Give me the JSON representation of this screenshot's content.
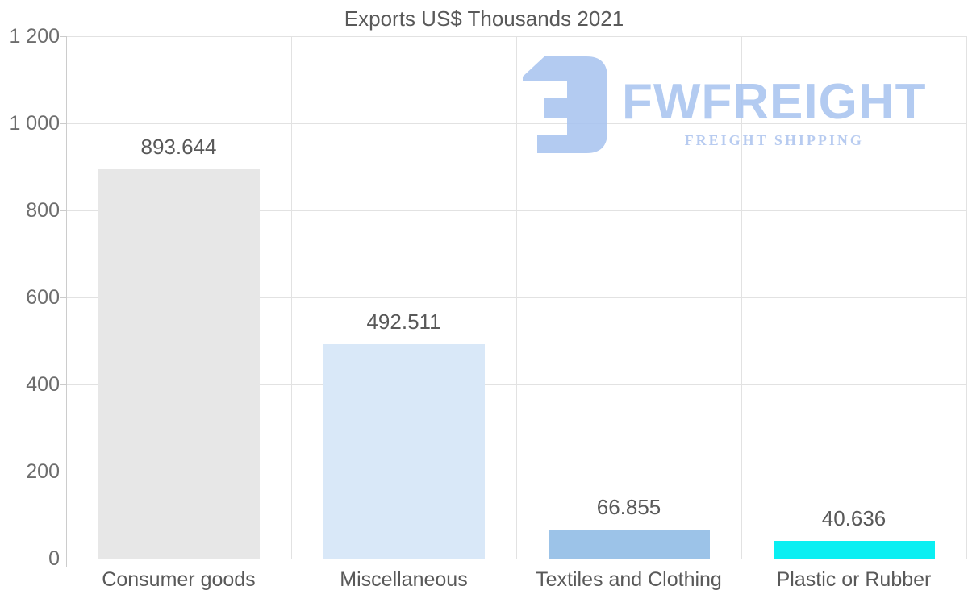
{
  "watermark": {
    "brand": "FWFREIGHT",
    "tagline": "FREIGHT SHIPPING",
    "brand_color": "#a9c4f0",
    "tagline_color": "#aec4ee",
    "icon": "fwfreight-logo-icon"
  },
  "chart_data": {
    "type": "bar",
    "title": "Exports US$ Thousands 2021",
    "categories": [
      "Consumer goods",
      "Miscellaneous",
      "Textiles and Clothing",
      "Plastic or Rubber"
    ],
    "values": [
      893.644,
      492.511,
      66.855,
      40.636
    ],
    "value_labels": [
      "893.644",
      "492.511",
      "66.855",
      "40.636"
    ],
    "bar_colors": [
      "#e7e7e7",
      "#d9e8f8",
      "#9cc3e8",
      "#0aeff2"
    ],
    "xlabel": "",
    "ylabel": "",
    "ylim": [
      0,
      1200
    ],
    "ytick_step": 200,
    "ytick_labels": [
      "0",
      "200",
      "400",
      "600",
      "800",
      "1 000",
      "1 200"
    ],
    "grid": true,
    "legend": "none",
    "colors": {
      "title_text": "#595959",
      "tick_text": "#6d6d6d",
      "gridline": "#e2e2e2",
      "axis_line": "#cccccc",
      "background": "#ffffff"
    }
  }
}
